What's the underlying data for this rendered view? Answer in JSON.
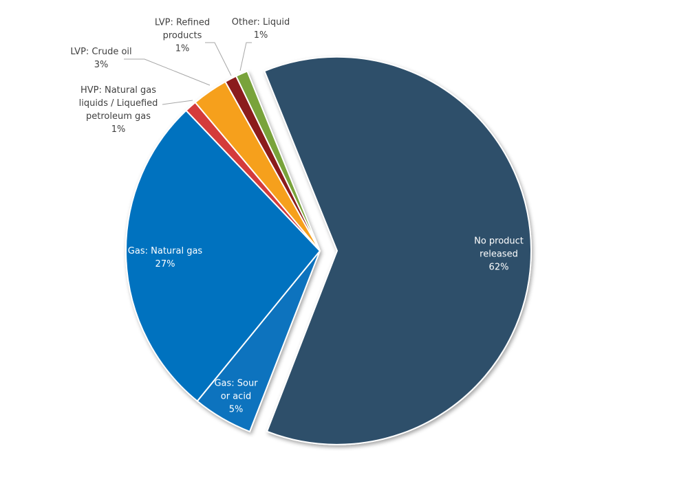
{
  "chart_data": {
    "type": "pie",
    "categories": [
      "No product released",
      "Gas: Sour or acid",
      "Gas: Natural gas",
      "HVP: Natural gas liquids / Liquefied petroleum gas",
      "LVP: Crude oil",
      "LVP: Refined products",
      "Other: Liquid"
    ],
    "values": [
      62,
      5,
      27,
      1,
      3,
      1,
      1
    ],
    "value_labels": [
      "62%",
      "5%",
      "27%",
      "1%",
      "3%",
      "1%",
      "1%"
    ],
    "colors": [
      "#2d4f6a",
      "#0873be",
      "#0072bf",
      "#d43a3a",
      "#f6a01e",
      "#8b1c1c",
      "#79a33b"
    ]
  }
}
